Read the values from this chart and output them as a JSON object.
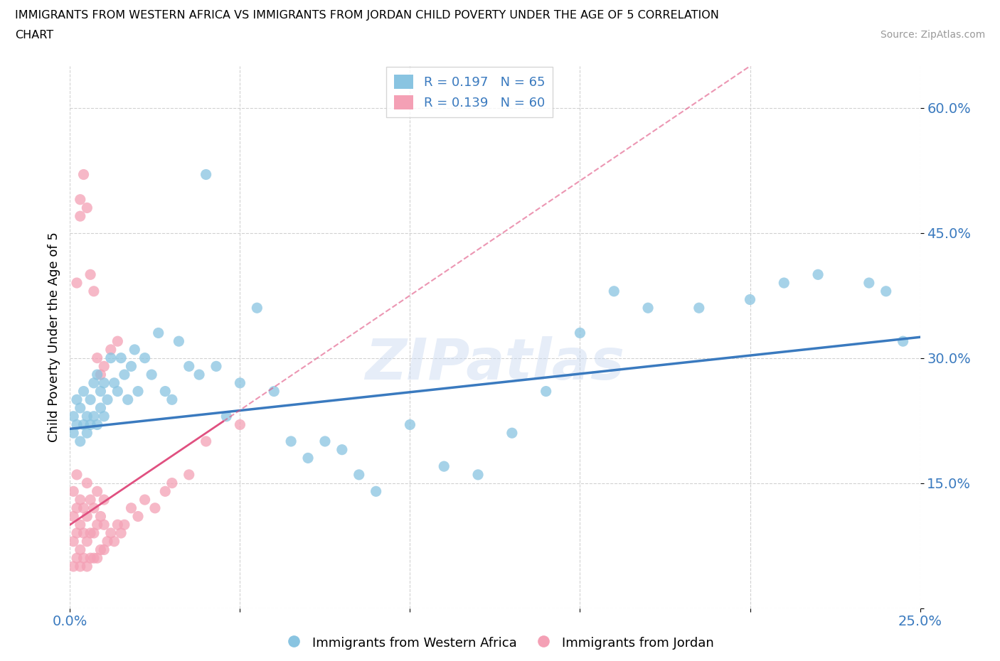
{
  "title_line1": "IMMIGRANTS FROM WESTERN AFRICA VS IMMIGRANTS FROM JORDAN CHILD POVERTY UNDER THE AGE OF 5 CORRELATION",
  "title_line2": "CHART",
  "source": "Source: ZipAtlas.com",
  "ylabel": "Child Poverty Under the Age of 5",
  "xlim": [
    0.0,
    0.25
  ],
  "ylim": [
    0.0,
    0.65
  ],
  "color_blue": "#89c4e1",
  "color_pink": "#f4a0b5",
  "trend_blue": "#3a7abf",
  "trend_pink": "#e05080",
  "R_blue": 0.197,
  "N_blue": 65,
  "R_pink": 0.139,
  "N_pink": 60,
  "legend_label_blue": "Immigrants from Western Africa",
  "legend_label_pink": "Immigrants from Jordan",
  "watermark": "ZIPatlas",
  "blue_scatter_x": [
    0.001,
    0.001,
    0.002,
    0.002,
    0.003,
    0.003,
    0.004,
    0.004,
    0.005,
    0.005,
    0.006,
    0.006,
    0.007,
    0.007,
    0.008,
    0.008,
    0.009,
    0.009,
    0.01,
    0.01,
    0.011,
    0.012,
    0.013,
    0.014,
    0.015,
    0.016,
    0.017,
    0.018,
    0.019,
    0.02,
    0.022,
    0.024,
    0.026,
    0.028,
    0.03,
    0.032,
    0.035,
    0.038,
    0.04,
    0.043,
    0.046,
    0.05,
    0.055,
    0.06,
    0.065,
    0.07,
    0.075,
    0.08,
    0.085,
    0.09,
    0.1,
    0.11,
    0.12,
    0.13,
    0.14,
    0.15,
    0.16,
    0.17,
    0.185,
    0.2,
    0.21,
    0.22,
    0.235,
    0.24,
    0.245
  ],
  "blue_scatter_y": [
    0.21,
    0.23,
    0.22,
    0.25,
    0.2,
    0.24,
    0.22,
    0.26,
    0.21,
    0.23,
    0.22,
    0.25,
    0.23,
    0.27,
    0.22,
    0.28,
    0.24,
    0.26,
    0.23,
    0.27,
    0.25,
    0.3,
    0.27,
    0.26,
    0.3,
    0.28,
    0.25,
    0.29,
    0.31,
    0.26,
    0.3,
    0.28,
    0.33,
    0.26,
    0.25,
    0.32,
    0.29,
    0.28,
    0.52,
    0.29,
    0.23,
    0.27,
    0.36,
    0.26,
    0.2,
    0.18,
    0.2,
    0.19,
    0.16,
    0.14,
    0.22,
    0.17,
    0.16,
    0.21,
    0.26,
    0.33,
    0.38,
    0.36,
    0.36,
    0.37,
    0.39,
    0.4,
    0.39,
    0.38,
    0.32
  ],
  "pink_scatter_x": [
    0.001,
    0.001,
    0.001,
    0.001,
    0.002,
    0.002,
    0.002,
    0.002,
    0.003,
    0.003,
    0.003,
    0.003,
    0.004,
    0.004,
    0.004,
    0.005,
    0.005,
    0.005,
    0.005,
    0.006,
    0.006,
    0.006,
    0.007,
    0.007,
    0.007,
    0.008,
    0.008,
    0.008,
    0.009,
    0.009,
    0.01,
    0.01,
    0.01,
    0.011,
    0.012,
    0.013,
    0.014,
    0.015,
    0.016,
    0.018,
    0.02,
    0.022,
    0.025,
    0.028,
    0.03,
    0.035,
    0.04,
    0.05,
    0.003,
    0.004,
    0.003,
    0.005,
    0.002,
    0.006,
    0.007,
    0.008,
    0.009,
    0.01,
    0.012,
    0.014
  ],
  "pink_scatter_y": [
    0.05,
    0.08,
    0.11,
    0.14,
    0.06,
    0.09,
    0.12,
    0.16,
    0.05,
    0.07,
    0.1,
    0.13,
    0.06,
    0.09,
    0.12,
    0.05,
    0.08,
    0.11,
    0.15,
    0.06,
    0.09,
    0.13,
    0.06,
    0.09,
    0.12,
    0.06,
    0.1,
    0.14,
    0.07,
    0.11,
    0.07,
    0.1,
    0.13,
    0.08,
    0.09,
    0.08,
    0.1,
    0.09,
    0.1,
    0.12,
    0.11,
    0.13,
    0.12,
    0.14,
    0.15,
    0.16,
    0.2,
    0.22,
    0.49,
    0.52,
    0.47,
    0.48,
    0.39,
    0.4,
    0.38,
    0.3,
    0.28,
    0.29,
    0.31,
    0.32
  ]
}
